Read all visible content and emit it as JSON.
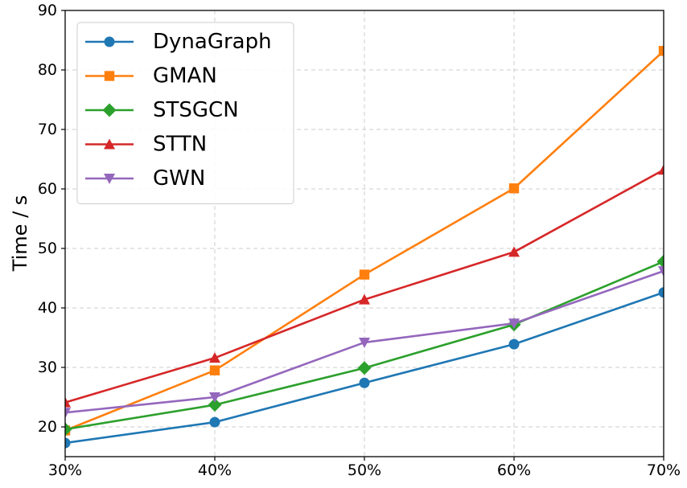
{
  "chart_data": {
    "type": "line",
    "title": "",
    "xlabel": "",
    "ylabel": "Time / s",
    "categories": [
      "30%",
      "40%",
      "50%",
      "60%",
      "70%"
    ],
    "ylim": [
      15,
      90
    ],
    "yticks": [
      20,
      30,
      40,
      50,
      60,
      70,
      80,
      90
    ],
    "grid": true,
    "legend_position": "top-left",
    "series": [
      {
        "name": "DynaGraph",
        "color": "#1f77b4",
        "marker": "circle",
        "values": [
          17.3,
          20.8,
          27.4,
          33.9,
          42.6
        ]
      },
      {
        "name": "GMAN",
        "color": "#ff7f0e",
        "marker": "square",
        "values": [
          19.4,
          29.5,
          45.6,
          60.1,
          83.2
        ]
      },
      {
        "name": "STSGCN",
        "color": "#2ca02c",
        "marker": "diamond",
        "values": [
          19.6,
          23.7,
          29.9,
          37.2,
          47.8
        ]
      },
      {
        "name": "STTN",
        "color": "#d62728",
        "marker": "triangle-up",
        "values": [
          24.1,
          31.6,
          41.4,
          49.4,
          63.2
        ]
      },
      {
        "name": "GWN",
        "color": "#9467bd",
        "marker": "triangle-down",
        "values": [
          22.4,
          25.0,
          34.2,
          37.4,
          46.2
        ]
      }
    ]
  }
}
